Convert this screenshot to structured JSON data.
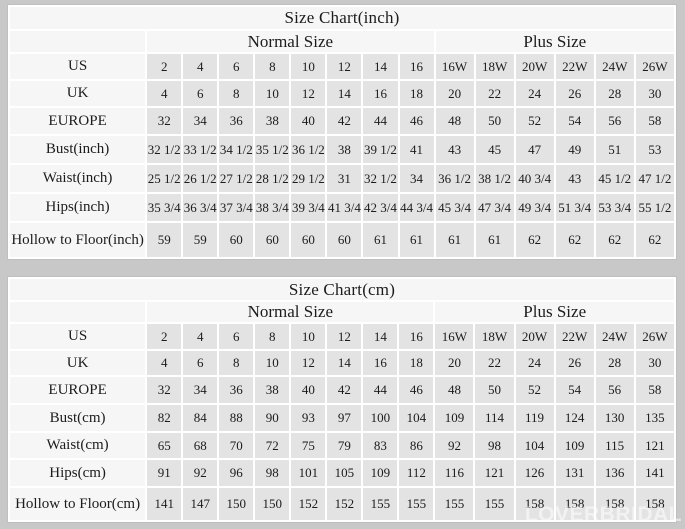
{
  "page": {
    "watermark": "LOVERBRIDAL",
    "background": "#c8c8c8"
  },
  "colors": {
    "page_background": "#c8c8c8",
    "data_cell_background": "#e3e3e3",
    "header_cell_background": "#f6f6f6",
    "grid_line": "#ffffff",
    "text": "#1c1c1c"
  },
  "charts": [
    {
      "title": "Size Chart(inch)",
      "groups": [
        {
          "label": "Normal Size",
          "span": 8
        },
        {
          "label": "Plus Size",
          "span": 6
        }
      ],
      "rows": [
        {
          "label": "US",
          "values": [
            "2",
            "4",
            "6",
            "8",
            "10",
            "12",
            "14",
            "16",
            "16W",
            "18W",
            "20W",
            "22W",
            "24W",
            "26W"
          ]
        },
        {
          "label": "UK",
          "values": [
            "4",
            "6",
            "8",
            "10",
            "12",
            "14",
            "16",
            "18",
            "20",
            "22",
            "24",
            "26",
            "28",
            "30"
          ]
        },
        {
          "label": "EUROPE",
          "values": [
            "32",
            "34",
            "36",
            "38",
            "40",
            "42",
            "44",
            "46",
            "48",
            "50",
            "52",
            "54",
            "56",
            "58"
          ]
        },
        {
          "label": "Bust(inch)",
          "values": [
            "32 1/2",
            "33 1/2",
            "34 1/2",
            "35 1/2",
            "36 1/2",
            "38",
            "39 1/2",
            "41",
            "43",
            "45",
            "47",
            "49",
            "51",
            "53"
          ]
        },
        {
          "label": "Waist(inch)",
          "values": [
            "25 1/2",
            "26 1/2",
            "27 1/2",
            "28 1/2",
            "29 1/2",
            "31",
            "32 1/2",
            "34",
            "36 1/2",
            "38 1/2",
            "40 3/4",
            "43",
            "45 1/2",
            "47 1/2"
          ]
        },
        {
          "label": "Hips(inch)",
          "values": [
            "35 3/4",
            "36 3/4",
            "37 3/4",
            "38 3/4",
            "39 3/4",
            "41 3/4",
            "42 3/4",
            "44 3/4",
            "45 3/4",
            "47 3/4",
            "49 3/4",
            "51 3/4",
            "53 3/4",
            "55 1/2"
          ]
        },
        {
          "label": "Hollow to Floor(inch)",
          "values": [
            "59",
            "59",
            "60",
            "60",
            "60",
            "60",
            "61",
            "61",
            "61",
            "61",
            "62",
            "62",
            "62",
            "62"
          ]
        }
      ]
    },
    {
      "title": "Size Chart(cm)",
      "groups": [
        {
          "label": "Normal Size",
          "span": 8
        },
        {
          "label": "Plus Size",
          "span": 6
        }
      ],
      "rows": [
        {
          "label": "US",
          "values": [
            "2",
            "4",
            "6",
            "8",
            "10",
            "12",
            "14",
            "16",
            "16W",
            "18W",
            "20W",
            "22W",
            "24W",
            "26W"
          ]
        },
        {
          "label": "UK",
          "values": [
            "4",
            "6",
            "8",
            "10",
            "12",
            "14",
            "16",
            "18",
            "20",
            "22",
            "24",
            "26",
            "28",
            "30"
          ]
        },
        {
          "label": "EUROPE",
          "values": [
            "32",
            "34",
            "36",
            "38",
            "40",
            "42",
            "44",
            "46",
            "48",
            "50",
            "52",
            "54",
            "56",
            "58"
          ]
        },
        {
          "label": "Bust(cm)",
          "values": [
            "82",
            "84",
            "88",
            "90",
            "93",
            "97",
            "100",
            "104",
            "109",
            "114",
            "119",
            "124",
            "130",
            "135"
          ]
        },
        {
          "label": "Waist(cm)",
          "values": [
            "65",
            "68",
            "70",
            "72",
            "75",
            "79",
            "83",
            "86",
            "92",
            "98",
            "104",
            "109",
            "115",
            "121"
          ]
        },
        {
          "label": "Hips(cm)",
          "values": [
            "91",
            "92",
            "96",
            "98",
            "101",
            "105",
            "109",
            "112",
            "116",
            "121",
            "126",
            "131",
            "136",
            "141"
          ]
        },
        {
          "label": "Hollow to Floor(cm)",
          "values": [
            "141",
            "147",
            "150",
            "150",
            "152",
            "152",
            "155",
            "155",
            "155",
            "155",
            "158",
            "158",
            "158",
            "158"
          ]
        }
      ]
    }
  ],
  "chart_data": [
    {
      "type": "table",
      "title": "Size Chart(inch)",
      "column_groups": [
        {
          "label": "Normal Size",
          "columns": [
            "2",
            "4",
            "6",
            "8",
            "10",
            "12",
            "14",
            "16"
          ]
        },
        {
          "label": "Plus Size",
          "columns": [
            "16W",
            "18W",
            "20W",
            "22W",
            "24W",
            "26W"
          ]
        }
      ],
      "row_headers": [
        "US",
        "UK",
        "EUROPE",
        "Bust(inch)",
        "Waist(inch)",
        "Hips(inch)",
        "Hollow to Floor(inch)"
      ],
      "rows": [
        [
          "2",
          "4",
          "6",
          "8",
          "10",
          "12",
          "14",
          "16",
          "16W",
          "18W",
          "20W",
          "22W",
          "24W",
          "26W"
        ],
        [
          "4",
          "6",
          "8",
          "10",
          "12",
          "14",
          "16",
          "18",
          "20",
          "22",
          "24",
          "26",
          "28",
          "30"
        ],
        [
          "32",
          "34",
          "36",
          "38",
          "40",
          "42",
          "44",
          "46",
          "48",
          "50",
          "52",
          "54",
          "56",
          "58"
        ],
        [
          "32 1/2",
          "33 1/2",
          "34 1/2",
          "35 1/2",
          "36 1/2",
          "38",
          "39 1/2",
          "41",
          "43",
          "45",
          "47",
          "49",
          "51",
          "53"
        ],
        [
          "25 1/2",
          "26 1/2",
          "27 1/2",
          "28 1/2",
          "29 1/2",
          "31",
          "32 1/2",
          "34",
          "36 1/2",
          "38 1/2",
          "40 3/4",
          "43",
          "45 1/2",
          "47 1/2"
        ],
        [
          "35 3/4",
          "36 3/4",
          "37 3/4",
          "38 3/4",
          "39 3/4",
          "41 3/4",
          "42 3/4",
          "44 3/4",
          "45 3/4",
          "47 3/4",
          "49 3/4",
          "51 3/4",
          "53 3/4",
          "55 1/2"
        ],
        [
          "59",
          "59",
          "60",
          "60",
          "60",
          "60",
          "61",
          "61",
          "61",
          "61",
          "62",
          "62",
          "62",
          "62"
        ]
      ]
    },
    {
      "type": "table",
      "title": "Size Chart(cm)",
      "column_groups": [
        {
          "label": "Normal Size",
          "columns": [
            "2",
            "4",
            "6",
            "8",
            "10",
            "12",
            "14",
            "16"
          ]
        },
        {
          "label": "Plus Size",
          "columns": [
            "16W",
            "18W",
            "20W",
            "22W",
            "24W",
            "26W"
          ]
        }
      ],
      "row_headers": [
        "US",
        "UK",
        "EUROPE",
        "Bust(cm)",
        "Waist(cm)",
        "Hips(cm)",
        "Hollow to Floor(cm)"
      ],
      "rows": [
        [
          "2",
          "4",
          "6",
          "8",
          "10",
          "12",
          "14",
          "16",
          "16W",
          "18W",
          "20W",
          "22W",
          "24W",
          "26W"
        ],
        [
          "4",
          "6",
          "8",
          "10",
          "12",
          "14",
          "16",
          "18",
          "20",
          "22",
          "24",
          "26",
          "28",
          "30"
        ],
        [
          "32",
          "34",
          "36",
          "38",
          "40",
          "42",
          "44",
          "46",
          "48",
          "50",
          "52",
          "54",
          "56",
          "58"
        ],
        [
          "82",
          "84",
          "88",
          "90",
          "93",
          "97",
          "100",
          "104",
          "109",
          "114",
          "119",
          "124",
          "130",
          "135"
        ],
        [
          "65",
          "68",
          "70",
          "72",
          "75",
          "79",
          "83",
          "86",
          "92",
          "98",
          "104",
          "109",
          "115",
          "121"
        ],
        [
          "91",
          "92",
          "96",
          "98",
          "101",
          "105",
          "109",
          "112",
          "116",
          "121",
          "126",
          "131",
          "136",
          "141"
        ],
        [
          "141",
          "147",
          "150",
          "150",
          "152",
          "152",
          "155",
          "155",
          "155",
          "155",
          "158",
          "158",
          "158",
          "158"
        ]
      ]
    }
  ]
}
